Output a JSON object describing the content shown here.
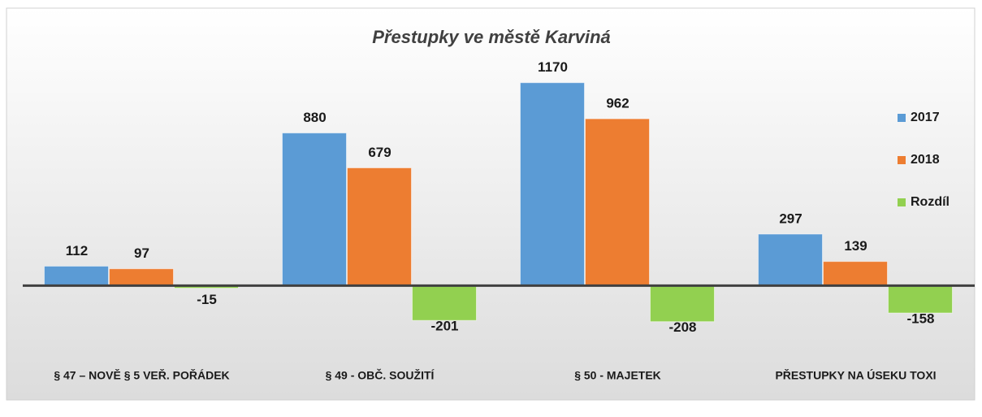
{
  "chart_data": {
    "type": "bar",
    "title": "Přestupky ve městě Karviná",
    "categories": [
      "§ 47 – NOVĚ § 5  VEŘ. POŘÁDEK",
      "§ 49 - OBČ. SOUŽITÍ",
      "§ 50 - MAJETEK",
      "PŘESTUPKY NA ÚSEKU TOXI"
    ],
    "series": [
      {
        "name": "2017",
        "color": "#5b9bd5",
        "values": [
          112,
          880,
          1170,
          297
        ]
      },
      {
        "name": "2018",
        "color": "#ed7d31",
        "values": [
          97,
          679,
          962,
          139
        ]
      },
      {
        "name": "Rozdíl",
        "color": "#92d050",
        "values": [
          -15,
          -201,
          -208,
          -158
        ]
      }
    ],
    "ylim": [
      -650,
      1600
    ],
    "legend": "right"
  }
}
